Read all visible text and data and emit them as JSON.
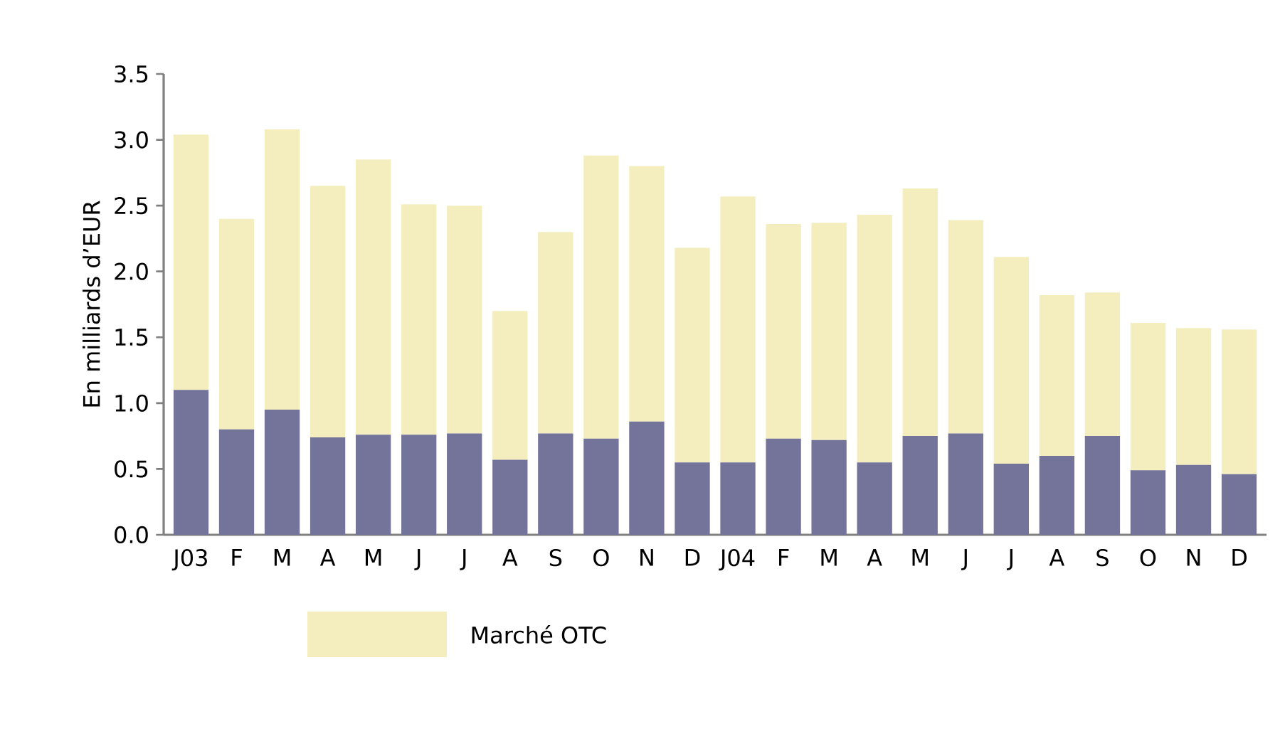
{
  "chart_data": {
    "type": "bar",
    "stacked": true,
    "ylabel": "En milliards d’EUR",
    "categories": [
      "J03",
      "F",
      "M",
      "A",
      "M",
      "J",
      "J",
      "A",
      "S",
      "O",
      "N",
      "D",
      "J04",
      "F",
      "M",
      "A",
      "M",
      "J",
      "J",
      "A",
      "S",
      "O",
      "N",
      "D"
    ],
    "series": [
      {
        "color": "#747399",
        "values": [
          1.1,
          0.8,
          0.95,
          0.74,
          0.76,
          0.76,
          0.77,
          0.57,
          0.77,
          0.73,
          0.86,
          0.55,
          0.55,
          0.73,
          0.72,
          0.55,
          0.75,
          0.77,
          0.54,
          0.6,
          0.75,
          0.49,
          0.53,
          0.46
        ]
      },
      {
        "name": "Marché OTC",
        "color": "#f4eebf",
        "values": [
          1.94,
          1.6,
          2.13,
          1.91,
          2.09,
          1.75,
          1.73,
          1.13,
          1.53,
          2.15,
          1.94,
          1.63,
          2.02,
          1.63,
          1.65,
          1.88,
          1.88,
          1.62,
          1.57,
          1.22,
          1.09,
          1.12,
          1.04,
          1.1
        ]
      }
    ],
    "ylim": [
      0,
      3.5
    ],
    "yticks": [
      {
        "value": 0,
        "label": "0.0"
      },
      {
        "value": 0.5,
        "label": "0.5"
      },
      {
        "value": 1,
        "label": "1.0"
      },
      {
        "value": 1.5,
        "label": "1.5"
      },
      {
        "value": 2,
        "label": "2.0"
      },
      {
        "value": 2.5,
        "label": "2.5"
      },
      {
        "value": 3,
        "label": "3.0"
      },
      {
        "value": 3.5,
        "label": "3.5"
      }
    ],
    "grid": false,
    "legend": "bottom"
  }
}
